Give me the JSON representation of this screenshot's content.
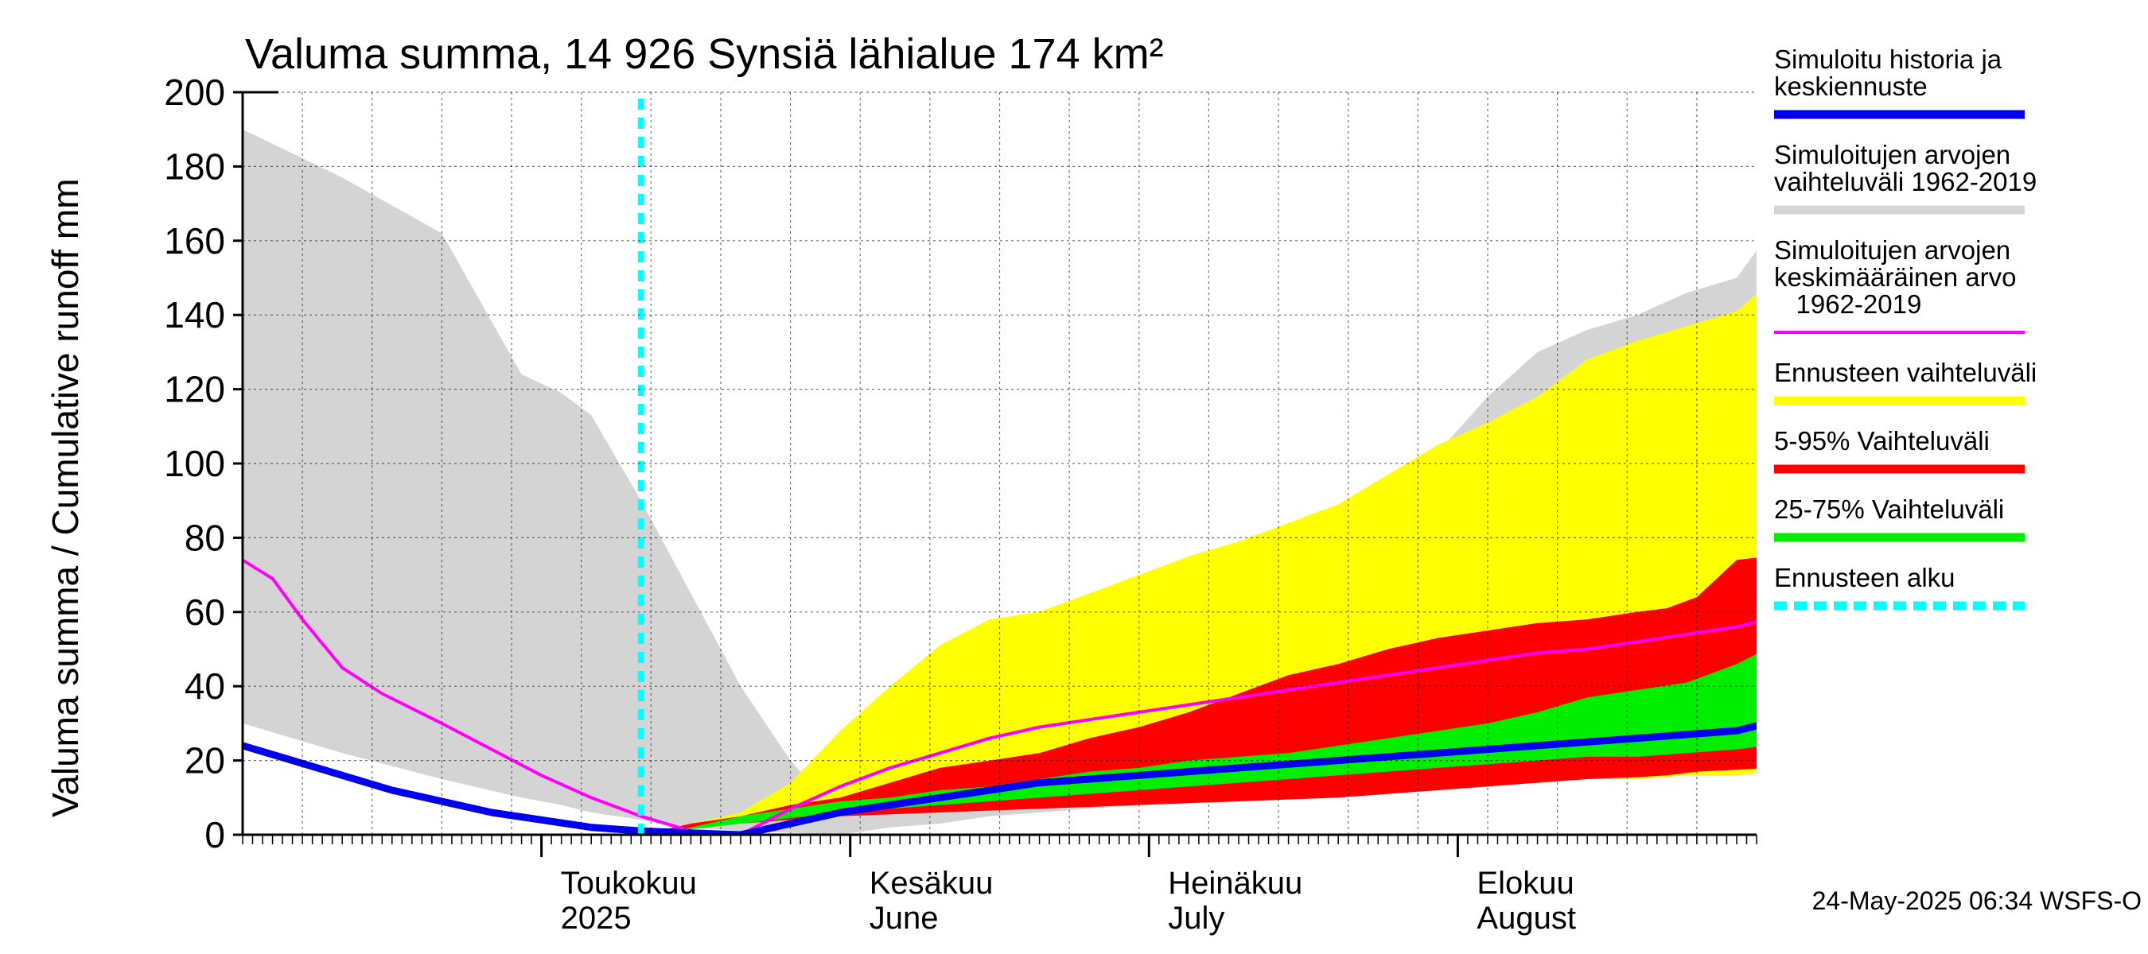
{
  "chart_data": {
    "type": "area",
    "title": "Valuma summa, 14 926 Synsiä lähialue 174 km²",
    "ylabel": "Valuma summa / Cumulative runoff    mm",
    "ylim": [
      0,
      200
    ],
    "yticks": [
      "0",
      "20",
      "40",
      "60",
      "80",
      "100",
      "120",
      "140",
      "160",
      "180",
      "200"
    ],
    "xlim": [
      "2025-04-01",
      "2025-08-31"
    ],
    "month_labels": [
      {
        "date": "2025-05-01",
        "line1": "Toukokuu",
        "line2": "2025"
      },
      {
        "date": "2025-06-01",
        "line1": "Kesäkuu",
        "line2": "June"
      },
      {
        "date": "2025-07-01",
        "line1": "Heinäkuu",
        "line2": "July"
      },
      {
        "date": "2025-08-01",
        "line1": "Elokuu",
        "line2": "August"
      }
    ],
    "forecast_start": "2025-05-11",
    "colors": {
      "history": "#0000ee",
      "sim_range": "#d4d4d4",
      "sim_mean": "#ff00ff",
      "ens_range": "#ffff00",
      "p5_95": "#ff0000",
      "p25_75": "#00ee00",
      "forecast_start": "#00ffff"
    },
    "series": [
      {
        "name": "Simuloitujen arvojen vaihteluväli 1962-2019",
        "role": "band",
        "color_key": "sim_range",
        "x": [
          0,
          10,
          20,
          28,
          32,
          35,
          40,
          45,
          50,
          55,
          60,
          65,
          70,
          75,
          80,
          85,
          90,
          95,
          100,
          105,
          110,
          115,
          120,
          125,
          130,
          135,
          140,
          145,
          150,
          153
        ],
        "upper": [
          190,
          177,
          162,
          124,
          119,
          113,
          90,
          65,
          40,
          20,
          5,
          25,
          32,
          36,
          40,
          46,
          58,
          64,
          73,
          81,
          87,
          92,
          103,
          118,
          130,
          136,
          140,
          146,
          150,
          161
        ],
        "lower": [
          30,
          22,
          15,
          10,
          8,
          6,
          4,
          2,
          1,
          0.5,
          0,
          2,
          3,
          5,
          6,
          7,
          8,
          9,
          10,
          11,
          12,
          14,
          16,
          18,
          19,
          20,
          21,
          22,
          24,
          26
        ]
      },
      {
        "name": "Ennusteen vaihteluväli",
        "role": "band",
        "color_key": "ens_range",
        "x": [
          40,
          45,
          50,
          55,
          60,
          65,
          70,
          75,
          80,
          85,
          90,
          95,
          100,
          105,
          110,
          115,
          120,
          125,
          130,
          135,
          140,
          145,
          150,
          153
        ],
        "upper": [
          0,
          3,
          6,
          14,
          28,
          40,
          51,
          58,
          60,
          65,
          70,
          75,
          79,
          84,
          89,
          97,
          105,
          111,
          118,
          128,
          133,
          137,
          141,
          148
        ],
        "lower": [
          0,
          2,
          3,
          4,
          5,
          6,
          7,
          8,
          9,
          10,
          10,
          11,
          11,
          12,
          12,
          13,
          13,
          14,
          14,
          15,
          15,
          16,
          16,
          17
        ]
      },
      {
        "name": "5-95% Vaihteluväli",
        "role": "band",
        "color_key": "p5_95",
        "x": [
          40,
          45,
          50,
          55,
          60,
          65,
          70,
          75,
          80,
          85,
          90,
          95,
          100,
          105,
          110,
          115,
          120,
          125,
          130,
          135,
          140,
          143,
          146,
          150,
          153
        ],
        "upper": [
          0,
          3,
          5,
          8,
          10,
          14,
          18,
          20,
          22,
          26,
          29,
          33,
          38,
          43,
          46,
          50,
          53,
          55,
          57,
          58,
          60,
          61,
          64,
          74,
          75
        ],
        "lower": [
          0,
          2,
          3,
          4,
          5,
          5.5,
          6,
          6.5,
          7,
          7.5,
          8,
          8.5,
          9,
          9.5,
          10,
          11,
          12,
          13,
          14,
          15,
          15.5,
          16,
          17,
          17.5,
          18
        ]
      },
      {
        "name": "25-75% Vaihteluväli",
        "role": "band",
        "color_key": "p25_75",
        "x": [
          40,
          45,
          50,
          55,
          60,
          65,
          70,
          75,
          80,
          85,
          90,
          95,
          100,
          105,
          110,
          115,
          120,
          125,
          130,
          135,
          140,
          145,
          150,
          153
        ],
        "upper": [
          0,
          2,
          5,
          7,
          9,
          10,
          12,
          13,
          15,
          17,
          18,
          20,
          21,
          22,
          24,
          26,
          28,
          30,
          33,
          37,
          39,
          41,
          46,
          50
        ],
        "lower": [
          0,
          1.5,
          3,
          4.5,
          6,
          7,
          8,
          9,
          10,
          11,
          12,
          13,
          14,
          15,
          16,
          17,
          18,
          19,
          20,
          21,
          21,
          22,
          23,
          24
        ]
      },
      {
        "name": "Simuloitujen arvojen keskimääräinen arvo 1962-2019",
        "role": "line",
        "color_key": "sim_mean",
        "x": [
          0,
          3,
          6,
          10,
          14,
          20,
          25,
          30,
          35,
          40,
          45,
          50,
          55,
          60,
          65,
          70,
          75,
          80,
          85,
          90,
          95,
          100,
          105,
          110,
          115,
          120,
          125,
          130,
          135,
          140,
          145,
          150,
          153
        ],
        "y": [
          74,
          69,
          58,
          45,
          38,
          30,
          23,
          16,
          10,
          5,
          1,
          0,
          7,
          13,
          18,
          22,
          26,
          29,
          31,
          33,
          35,
          37,
          39,
          41,
          43,
          45,
          47,
          49,
          50,
          52,
          54,
          56,
          58
        ]
      },
      {
        "name": "Simuloitu historia ja keskiennuste",
        "role": "line",
        "color_key": "history",
        "x": [
          0,
          5,
          10,
          15,
          20,
          25,
          30,
          35,
          40,
          45,
          50,
          55,
          60,
          65,
          70,
          75,
          80,
          85,
          90,
          95,
          100,
          105,
          110,
          115,
          120,
          125,
          130,
          135,
          140,
          145,
          150,
          153
        ],
        "y": [
          24,
          20,
          16,
          12,
          9,
          6,
          4,
          2,
          1,
          0.5,
          0,
          3,
          6,
          8,
          10,
          12,
          14,
          15,
          16,
          17,
          18,
          19,
          20,
          21,
          22,
          23,
          24,
          25,
          26,
          27,
          28,
          30
        ]
      },
      {
        "name": "Ennusteen alku",
        "role": "vline",
        "color_key": "forecast_start"
      }
    ],
    "legend": {
      "placement": "right",
      "entries": [
        {
          "lines": [
            "Simuloitu historia ja",
            "keskiennuste"
          ],
          "color_key": "history",
          "style": "solid"
        },
        {
          "lines": [
            "Simuloitujen arvojen",
            "vaihteluväli 1962-2019"
          ],
          "color_key": "sim_range",
          "style": "solid"
        },
        {
          "lines": [
            "Simuloitujen arvojen",
            "keskimääräinen arvo",
            "   1962-2019"
          ],
          "color_key": "sim_mean",
          "style": "thin"
        },
        {
          "lines": [
            "Ennusteen vaihteluväli"
          ],
          "color_key": "ens_range",
          "style": "solid"
        },
        {
          "lines": [
            "5-95% Vaihteluväli"
          ],
          "color_key": "p5_95",
          "style": "solid"
        },
        {
          "lines": [
            "25-75% Vaihteluväli"
          ],
          "color_key": "p25_75",
          "style": "solid"
        },
        {
          "lines": [
            "Ennusteen alku"
          ],
          "color_key": "forecast_start",
          "style": "dashed"
        }
      ]
    },
    "grid": true,
    "footer": "24-May-2025 06:34 WSFS-O"
  }
}
